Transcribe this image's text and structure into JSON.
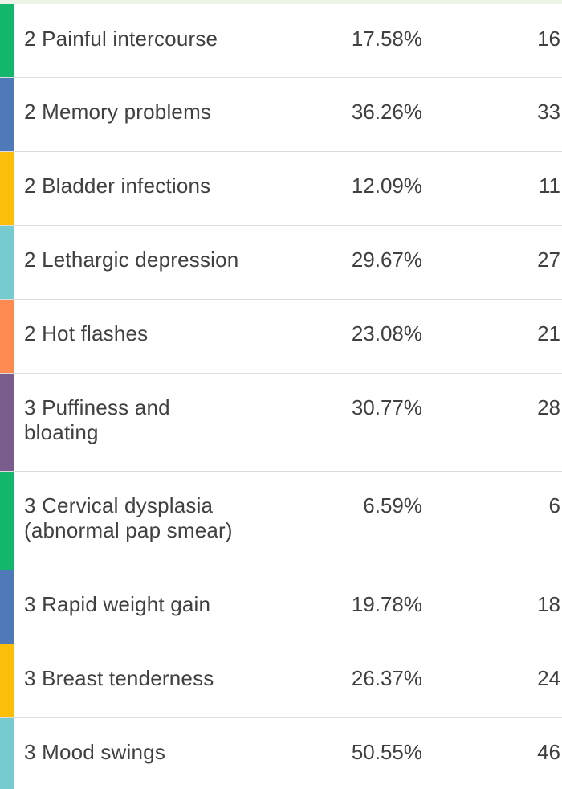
{
  "rows": [
    {
      "label": "2 Painful intercourse",
      "percent": "17.58%",
      "count": "16",
      "color": "#13b66b"
    },
    {
      "label": "2 Memory problems",
      "percent": "36.26%",
      "count": "33",
      "color": "#4f79b8"
    },
    {
      "label": "2 Bladder infections",
      "percent": "12.09%",
      "count": "11",
      "color": "#fbbf0a"
    },
    {
      "label": "2 Lethargic depression",
      "percent": "29.67%",
      "count": "27",
      "color": "#76cbcf"
    },
    {
      "label": "2 Hot flashes",
      "percent": "23.08%",
      "count": "21",
      "color": "#fd8a50"
    },
    {
      "label": "3 Puffiness and bloating",
      "percent": "30.77%",
      "count": "28",
      "color": "#7b5d8d"
    },
    {
      "label": "3 Cervical dysplasia (abnormal pap smear)",
      "percent": "6.59%",
      "count": "6",
      "color": "#13b66b"
    },
    {
      "label": "3 Rapid weight gain",
      "percent": "19.78%",
      "count": "18",
      "color": "#4f79b8"
    },
    {
      "label": "3 Breast tenderness",
      "percent": "26.37%",
      "count": "24",
      "color": "#fbbf0a"
    },
    {
      "label": "3 Mood swings",
      "percent": "50.55%",
      "count": "46",
      "color": "#76cbcf"
    }
  ]
}
